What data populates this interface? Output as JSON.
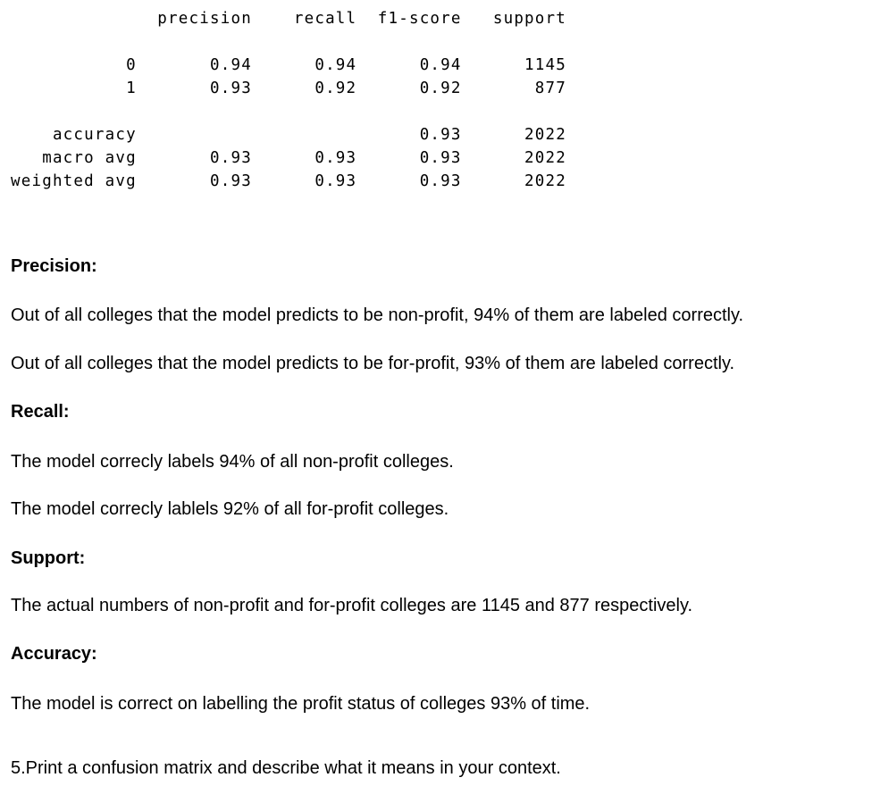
{
  "report_lines": [
    "              precision    recall  f1-score   support",
    "",
    "           0       0.94      0.94      0.94      1145",
    "           1       0.93      0.92      0.92       877",
    "",
    "    accuracy                           0.93      2022",
    "   macro avg       0.93      0.93      0.93      2022",
    "weighted avg       0.93      0.93      0.93      2022"
  ],
  "sections": {
    "precision_heading": "Precision:",
    "precision_text_1": "Out of all colleges that the model predicts to be non-profit, 94% of them are labeled correctly.",
    "precision_text_2": "Out of all colleges that the model predicts to be for-profit, 93% of them are labeled correctly.",
    "recall_heading": "Recall:",
    "recall_text_1": "The model correcly labels 94% of all non-profit colleges.",
    "recall_text_2": "The model correcly lablels 92% of all for-profit colleges.",
    "support_heading": "Support:",
    "support_text": "The actual numbers of non-profit and for-profit colleges are 1145 and 877 respectively.",
    "accuracy_heading": "Accuracy:",
    "accuracy_text": "The model is correct on labelling the profit status of colleges 93% of time.",
    "question": "5.Print a confusion matrix and describe what it means in your context."
  }
}
